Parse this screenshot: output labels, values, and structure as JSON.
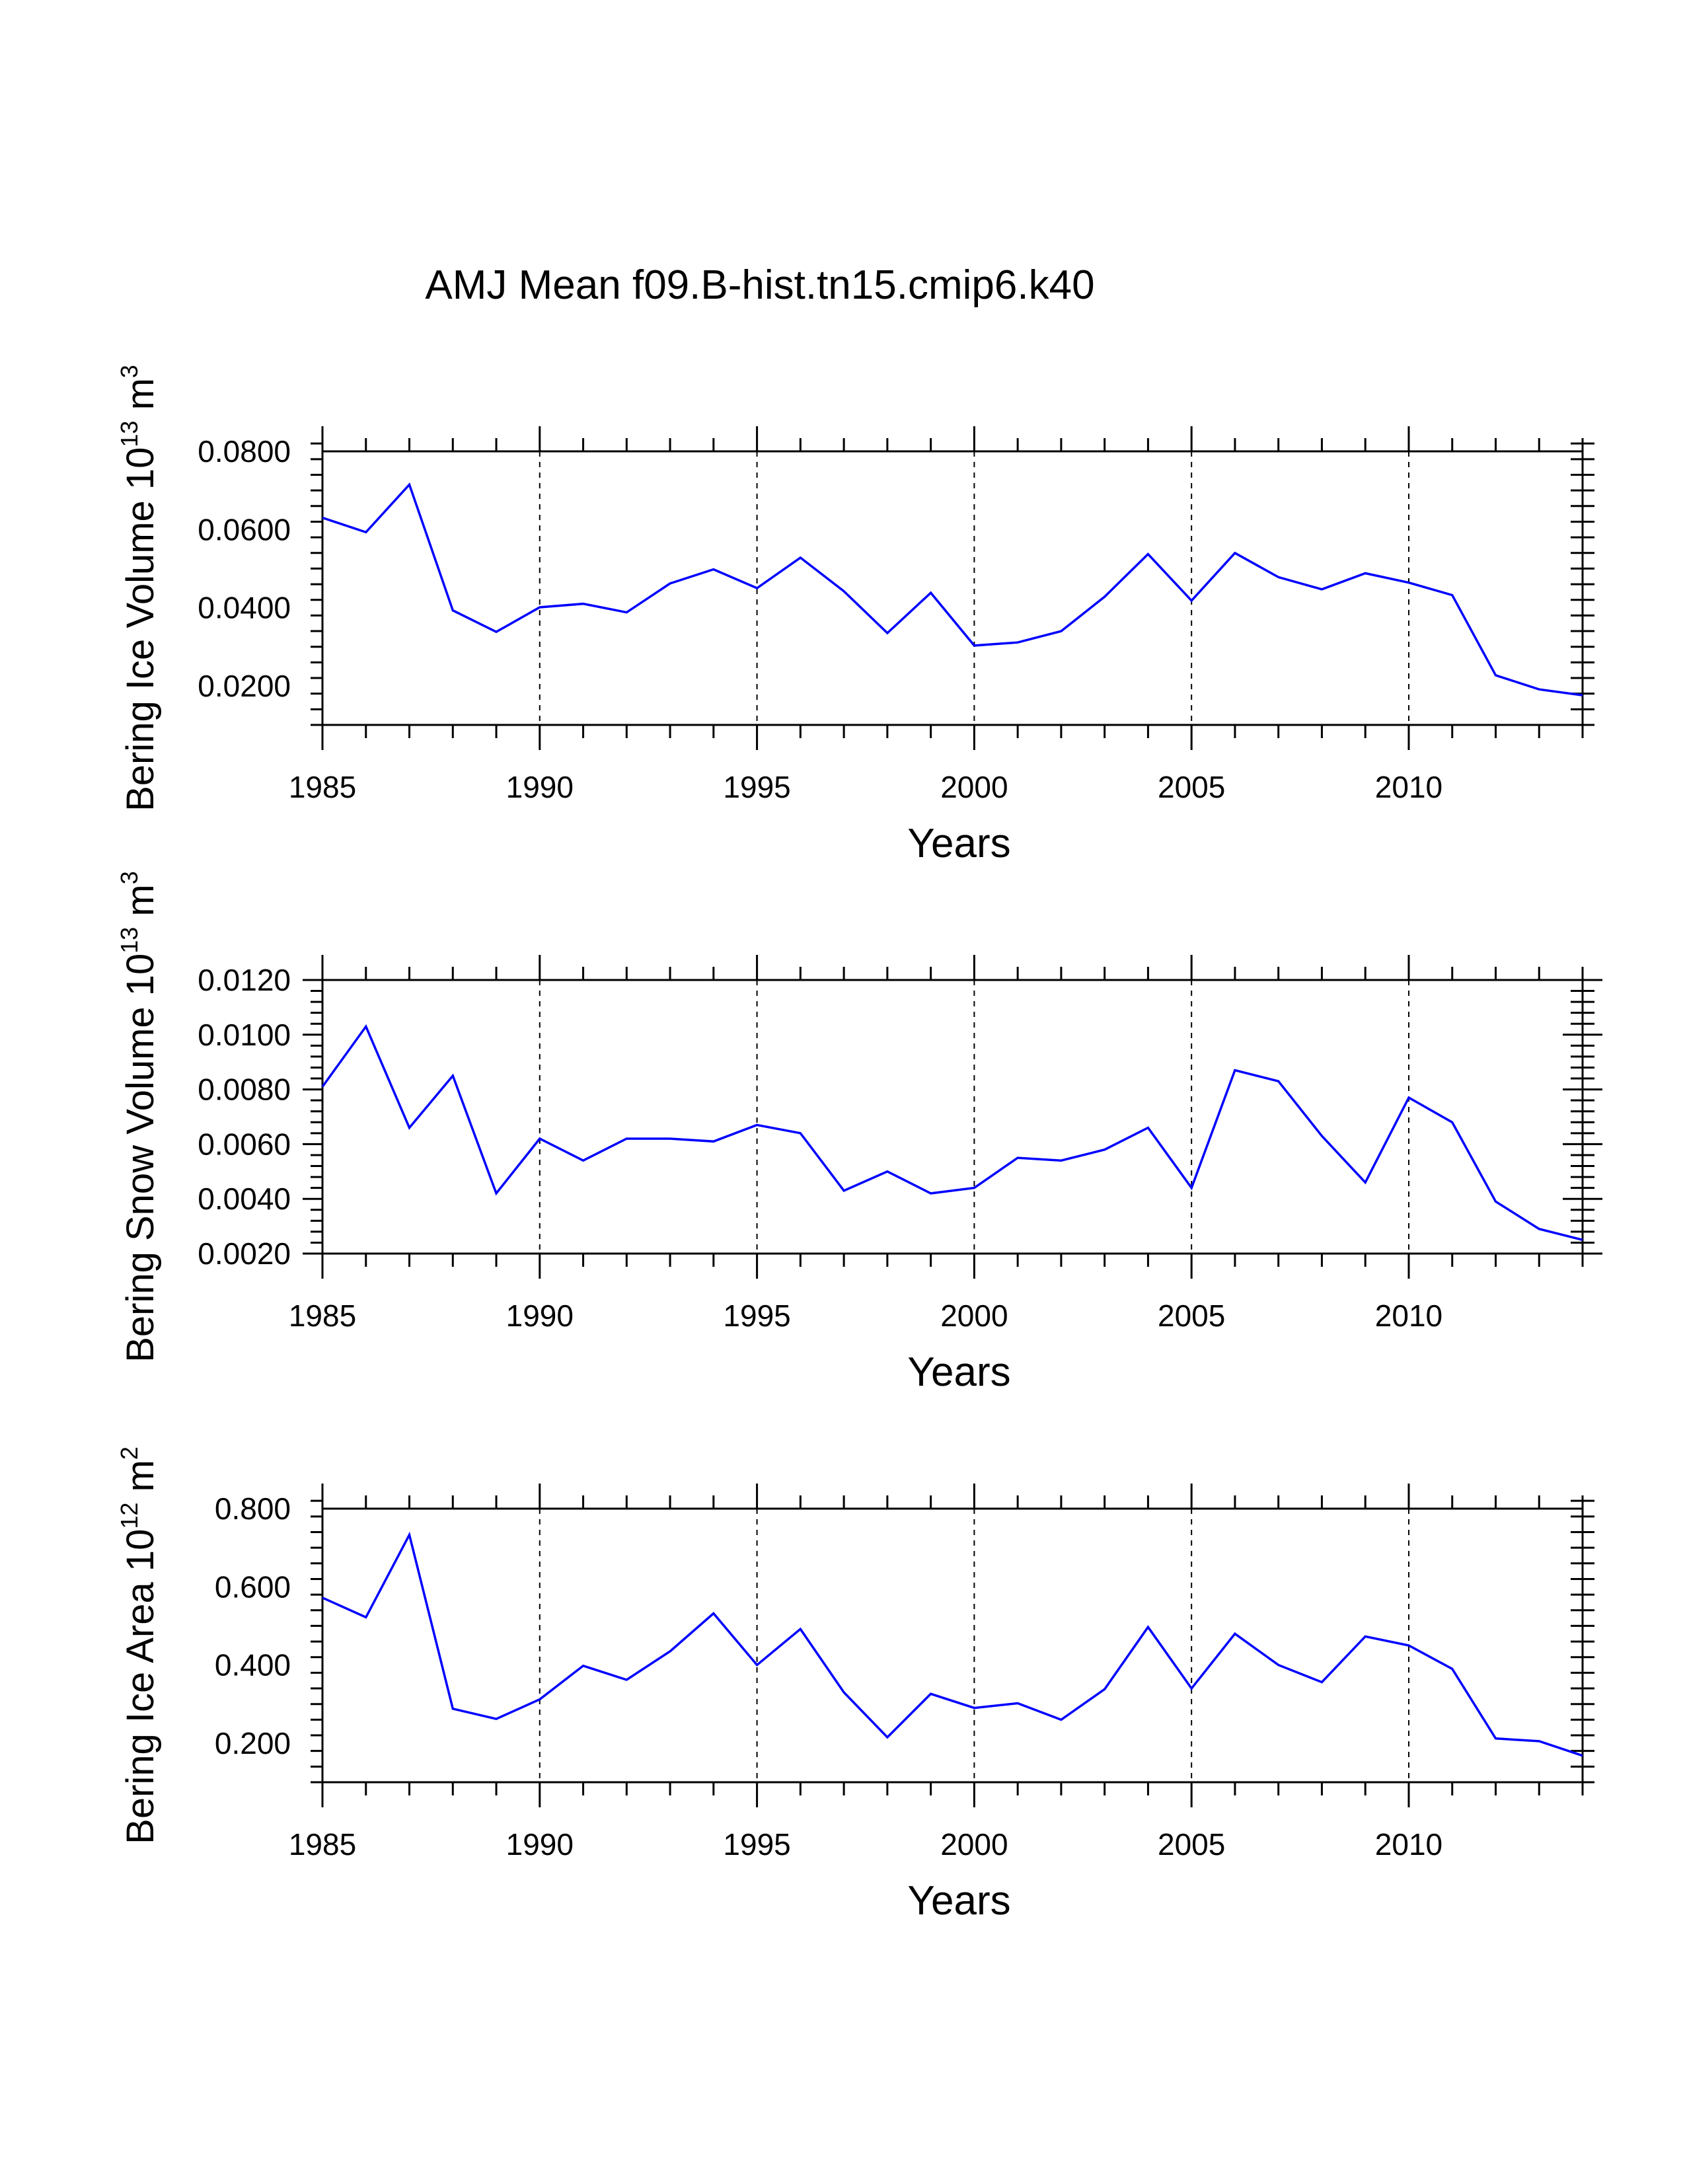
{
  "title": "AMJ Mean f09.B-hist.tn15.cmip6.k40",
  "colors": {
    "line": "#0000ff",
    "axis": "#000000",
    "grid": "#000000"
  },
  "chart_data": [
    {
      "type": "line",
      "ylabel": {
        "main": "Bering Ice Volume 10",
        "exp": "13",
        "unit": " m",
        "unit_exp": "3"
      },
      "xlabel": "Years",
      "xlim": [
        1985,
        2014
      ],
      "ylim": [
        0.01,
        0.08
      ],
      "yticks": [
        0.02,
        0.04,
        0.06,
        0.08
      ],
      "ytick_labels": [
        "0.0200",
        "0.0400",
        "0.0600",
        "0.0800"
      ],
      "xticks": [
        1985,
        1990,
        1995,
        2000,
        2005,
        2010
      ],
      "xtick_labels": [
        "1985",
        "1990",
        "1995",
        "2000",
        "2005",
        "2010"
      ],
      "x": [
        1985,
        1986,
        1987,
        1988,
        1989,
        1990,
        1991,
        1992,
        1993,
        1994,
        1995,
        1996,
        1997,
        1998,
        1999,
        2000,
        2001,
        2002,
        2003,
        2004,
        2005,
        2006,
        2007,
        2008,
        2009,
        2010,
        2011,
        2012,
        2013,
        2014
      ],
      "values": [
        0.063,
        0.0593,
        0.0715,
        0.0393,
        0.0338,
        0.0401,
        0.041,
        0.0388,
        0.0462,
        0.0498,
        0.045,
        0.0528,
        0.0442,
        0.0335,
        0.0438,
        0.0303,
        0.0311,
        0.034,
        0.0428,
        0.0537,
        0.0418,
        0.054,
        0.0478,
        0.0447,
        0.0488,
        0.0464,
        0.0432,
        0.0227,
        0.0191,
        0.0176
      ]
    },
    {
      "type": "line",
      "ylabel": {
        "main": "Bering Snow Volume 10",
        "exp": "13",
        "unit": " m",
        "unit_exp": "3"
      },
      "xlabel": "Years",
      "xlim": [
        1985,
        2014
      ],
      "ylim": [
        0.002,
        0.012
      ],
      "yticks": [
        0.002,
        0.004,
        0.006,
        0.008,
        0.01,
        0.012
      ],
      "ytick_labels": [
        "0.0020",
        "0.0040",
        "0.0060",
        "0.0080",
        "0.0100",
        "0.0120"
      ],
      "xticks": [
        1985,
        1990,
        1995,
        2000,
        2005,
        2010
      ],
      "xtick_labels": [
        "1985",
        "1990",
        "1995",
        "2000",
        "2005",
        "2010"
      ],
      "x": [
        1985,
        1986,
        1987,
        1988,
        1989,
        1990,
        1991,
        1992,
        1993,
        1994,
        1995,
        1996,
        1997,
        1998,
        1999,
        2000,
        2001,
        2002,
        2003,
        2004,
        2005,
        2006,
        2007,
        2008,
        2009,
        2010,
        2011,
        2012,
        2013,
        2014
      ],
      "values": [
        0.0081,
        0.0103,
        0.0066,
        0.0085,
        0.0042,
        0.0062,
        0.0054,
        0.0062,
        0.0062,
        0.0061,
        0.0067,
        0.0064,
        0.0043,
        0.005,
        0.0042,
        0.0044,
        0.0055,
        0.0054,
        0.0058,
        0.0066,
        0.0044,
        0.0087,
        0.0083,
        0.0063,
        0.0046,
        0.0077,
        0.0068,
        0.0039,
        0.0029,
        0.0025
      ]
    },
    {
      "type": "line",
      "ylabel": {
        "main": "Bering Ice Area 10",
        "exp": "12",
        "unit": " m",
        "unit_exp": "2"
      },
      "xlabel": "Years",
      "xlim": [
        1985,
        2014
      ],
      "ylim": [
        0.1,
        0.8
      ],
      "yticks": [
        0.2,
        0.4,
        0.6,
        0.8
      ],
      "ytick_labels": [
        "0.200",
        "0.400",
        "0.600",
        "0.800"
      ],
      "xticks": [
        1985,
        1990,
        1995,
        2000,
        2005,
        2010
      ],
      "xtick_labels": [
        "1985",
        "1990",
        "1995",
        "2000",
        "2005",
        "2010"
      ],
      "x": [
        1985,
        1986,
        1987,
        1988,
        1989,
        1990,
        1991,
        1992,
        1993,
        1994,
        1995,
        1996,
        1997,
        1998,
        1999,
        2000,
        2001,
        2002,
        2003,
        2004,
        2005,
        2006,
        2007,
        2008,
        2009,
        2010,
        2011,
        2012,
        2013,
        2014
      ],
      "values": [
        0.572,
        0.522,
        0.733,
        0.288,
        0.262,
        0.312,
        0.398,
        0.362,
        0.435,
        0.532,
        0.4,
        0.492,
        0.33,
        0.215,
        0.326,
        0.29,
        0.302,
        0.26,
        0.338,
        0.497,
        0.34,
        0.48,
        0.4,
        0.356,
        0.473,
        0.45,
        0.39,
        0.212,
        0.205,
        0.168
      ]
    }
  ]
}
